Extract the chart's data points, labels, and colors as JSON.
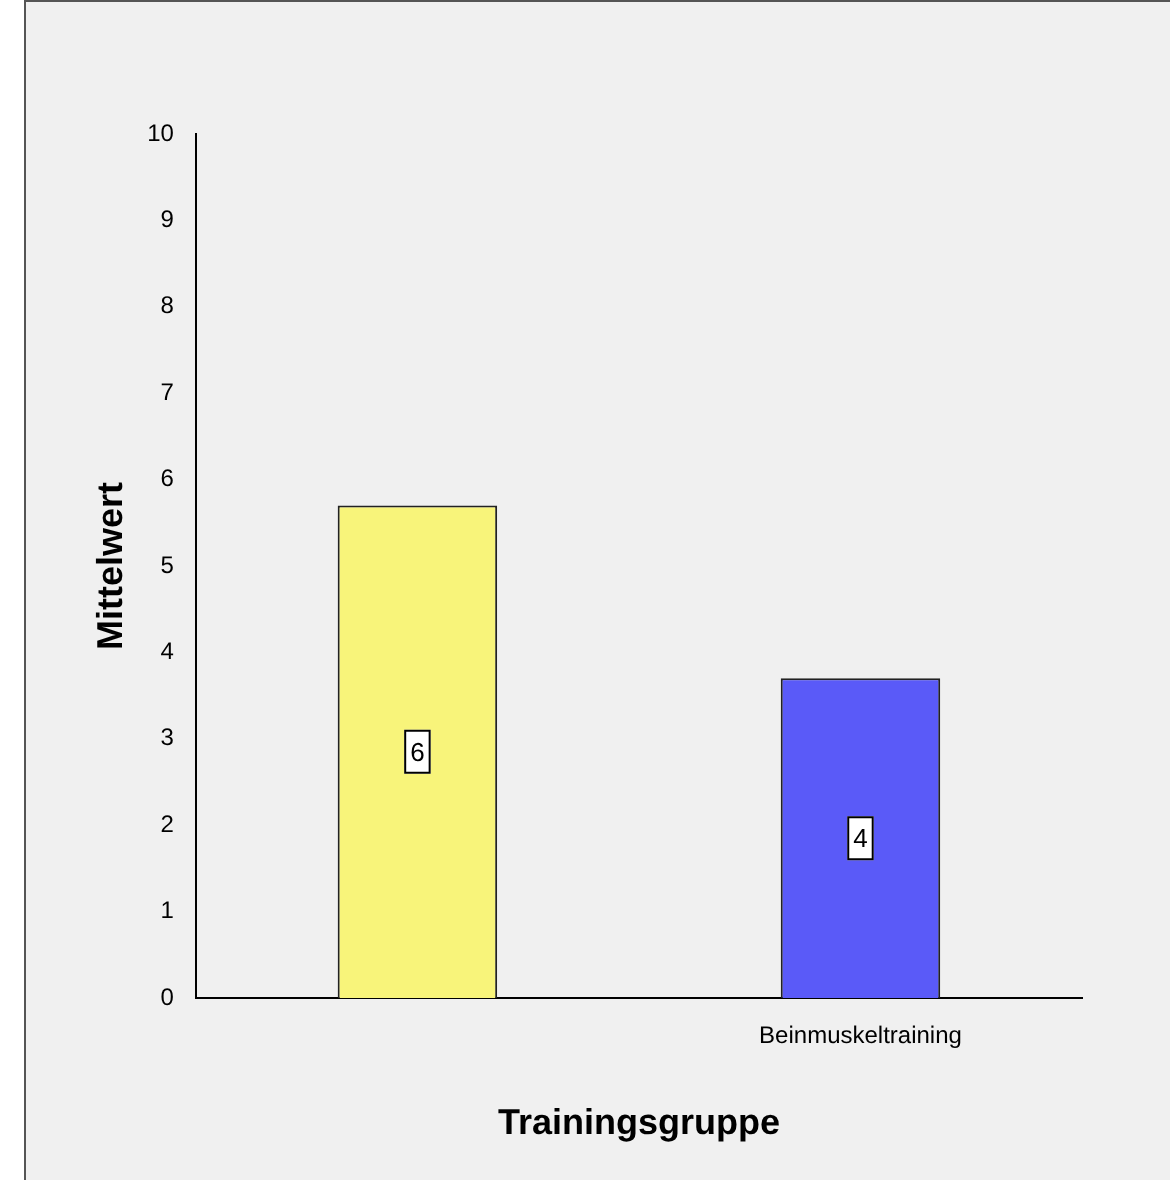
{
  "chart_data": {
    "type": "bar",
    "xlabel": "Trainingsgruppe",
    "ylabel": "Mittelwert",
    "categories": [
      null,
      "Beinmuskeltraining"
    ],
    "values": [
      5.7,
      3.7
    ],
    "colors": [
      "#f8f47a",
      "#5a5af8"
    ],
    "value_labels": [
      "6",
      "4"
    ],
    "ylim": [
      0,
      10
    ],
    "yticks": [
      0,
      1,
      2,
      3,
      4,
      5,
      6,
      7,
      8,
      9,
      10
    ],
    "grid": false,
    "legend": false
  }
}
